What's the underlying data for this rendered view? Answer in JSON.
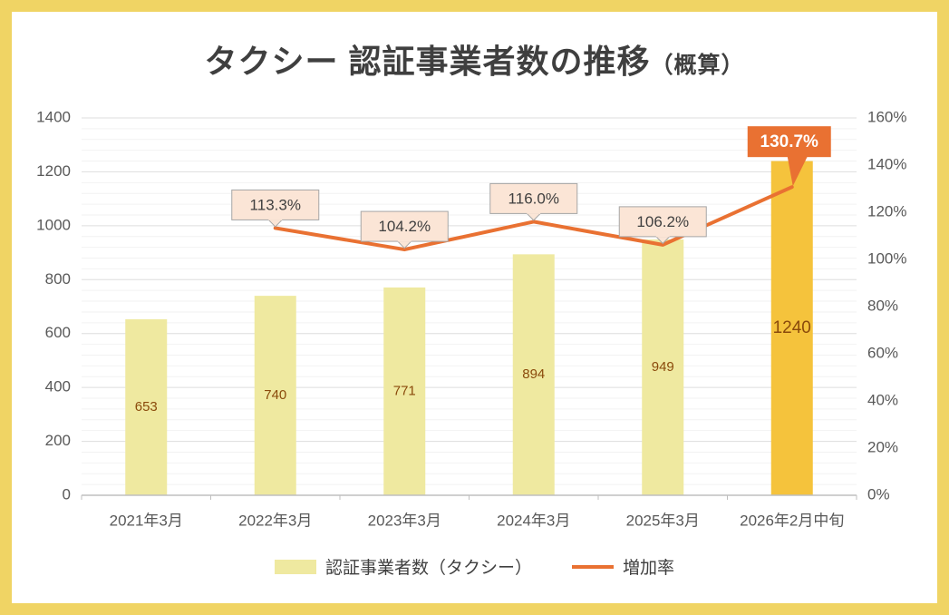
{
  "title": {
    "main": "タクシー 認証事業者数の推移",
    "suffix": "（概算）"
  },
  "chart_data": {
    "type": "combo-bar-line",
    "title": "タクシー 認証事業者数の推移（概算）",
    "categories": [
      "2021年3月",
      "2022年3月",
      "2023年3月",
      "2024年3月",
      "2025年3月",
      "2026年2月中旬"
    ],
    "series": [
      {
        "name": "認証事業者数（タクシー）",
        "type": "bar",
        "axis": "left",
        "values": [
          653,
          740,
          771,
          894,
          949,
          1240
        ],
        "value_labels": [
          "653",
          "740",
          "771",
          "894",
          "949",
          "1240"
        ]
      },
      {
        "name": "増加率",
        "type": "line",
        "axis": "right",
        "values": [
          null,
          113.3,
          104.2,
          116.0,
          106.2,
          130.7
        ],
        "point_labels": [
          null,
          "113.3%",
          "104.2%",
          "116.0%",
          "106.2%",
          "130.7%"
        ]
      }
    ],
    "left_axis": {
      "min": 0,
      "max": 1400,
      "major_step": 200,
      "minor_step": 40,
      "tick_labels": [
        "0",
        "200",
        "400",
        "600",
        "800",
        "1000",
        "1200",
        "1400"
      ]
    },
    "right_axis": {
      "min": 0,
      "max": 160,
      "major_step": 20,
      "tick_labels": [
        "0%",
        "20%",
        "40%",
        "60%",
        "80%",
        "100%",
        "120%",
        "140%",
        "160%"
      ]
    },
    "grid": true,
    "legend_position": "bottom"
  },
  "legend": {
    "bar_label": "認証事業者数（タクシー）",
    "line_label": "増加率"
  },
  "colors": {
    "frame": "#F0D464",
    "panel": "#FFFFFF",
    "title_text": "#3F3F3F",
    "axis_text": "#595959",
    "bar": "#EFE9A0",
    "bar_highlight": "#F5C33C",
    "bar_value_text": "#8A4A0B",
    "line": "#E97132",
    "callout_fill": "#FBE5D6",
    "callout_border": "#A6A6A6",
    "callout_text": "#404040",
    "callout_highlight_fill": "#E97132",
    "callout_highlight_text": "#FFFFFF",
    "grid_major": "#DEDEDE",
    "grid_minor": "#F2F2F2",
    "axis_line": "#BFBFBF"
  }
}
